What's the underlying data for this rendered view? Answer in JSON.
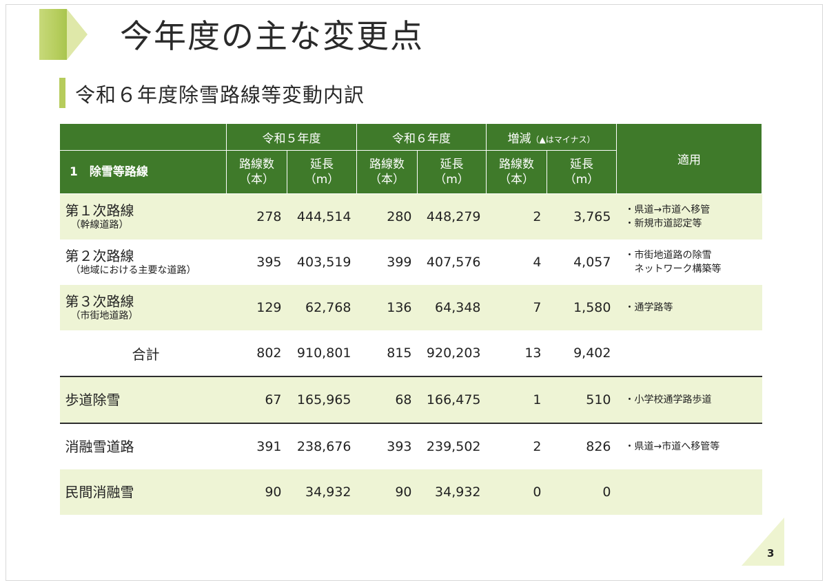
{
  "title": "今年度の主な変更点",
  "subtitle": "令和６年度除雪路線等変動内訳",
  "header": {
    "r5": "令和５年度",
    "r6": "令和６年度",
    "diff": "増減",
    "diff_note": "（▲はマイナス）",
    "apply": "適用",
    "section": "1　除雪等路線",
    "count": "路線数",
    "count_unit": "（本）",
    "length": "延長",
    "length_unit": "（m）"
  },
  "rows": [
    {
      "name": "第１次路線",
      "sub": "（幹線道路）",
      "r5_count": "278",
      "r5_length": "444,514",
      "r6_count": "280",
      "r6_length": "448,279",
      "diff_count": "2",
      "diff_length": "3,765",
      "apply1": "・県道→市道へ移管",
      "apply2": "・新規市道認定等"
    },
    {
      "name": "第２次路線",
      "sub": "（地域における主要な道路）",
      "r5_count": "395",
      "r5_length": "403,519",
      "r6_count": "399",
      "r6_length": "407,576",
      "diff_count": "4",
      "diff_length": "4,057",
      "apply1": "・市街地道路の除雪",
      "apply2": "　ネットワーク構築等"
    },
    {
      "name": "第３次路線",
      "sub": "（市街地道路）",
      "r5_count": "129",
      "r5_length": "62,768",
      "r6_count": "136",
      "r6_length": "64,348",
      "diff_count": "7",
      "diff_length": "1,580",
      "apply1": "・通学路等",
      "apply2": ""
    },
    {
      "name": "合計",
      "sub": "",
      "r5_count": "802",
      "r5_length": "910,801",
      "r6_count": "815",
      "r6_length": "920,203",
      "diff_count": "13",
      "diff_length": "9,402",
      "apply1": "",
      "apply2": ""
    },
    {
      "name": "歩道除雪",
      "sub": "",
      "r5_count": "67",
      "r5_length": "165,965",
      "r6_count": "68",
      "r6_length": "166,475",
      "diff_count": "1",
      "diff_length": "510",
      "apply1": "・小学校通学路歩道",
      "apply2": ""
    },
    {
      "name": "消融雪道路",
      "sub": "",
      "r5_count": "391",
      "r5_length": "238,676",
      "r6_count": "393",
      "r6_length": "239,502",
      "diff_count": "2",
      "diff_length": "826",
      "apply1": "・県道→市道へ移管等",
      "apply2": ""
    },
    {
      "name": "民間消融雪",
      "sub": "",
      "r5_count": "90",
      "r5_length": "34,932",
      "r6_count": "90",
      "r6_length": "34,932",
      "diff_count": "0",
      "diff_length": "0",
      "apply1": "",
      "apply2": ""
    }
  ],
  "page_number": "3",
  "colors": {
    "header": "#3f7a2a",
    "shade": "#eef4d5",
    "accent": "#b6cc5c"
  }
}
